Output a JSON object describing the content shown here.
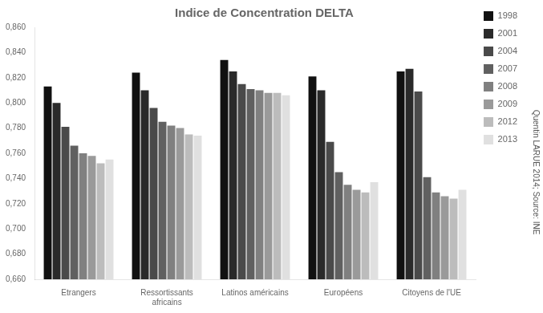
{
  "chart_data": {
    "type": "bar",
    "title": "Indice de Concentration DELTA",
    "categories": [
      "Etrangers",
      "Ressortissants\nafricains",
      "Latinos américains",
      "Européens",
      "Citoyens de l'UE"
    ],
    "series": [
      {
        "name": "1998",
        "color": "#111111",
        "values": [
          0.813,
          0.824,
          0.834,
          0.821,
          0.825
        ]
      },
      {
        "name": "2001",
        "color": "#2a2a2a",
        "values": [
          0.8,
          0.81,
          0.825,
          0.81,
          0.827
        ]
      },
      {
        "name": "2004",
        "color": "#4a4a4a",
        "values": [
          0.781,
          0.796,
          0.815,
          0.769,
          0.809
        ]
      },
      {
        "name": "2007",
        "color": "#606060",
        "values": [
          0.766,
          0.785,
          0.811,
          0.745,
          0.741
        ]
      },
      {
        "name": "2008",
        "color": "#808080",
        "values": [
          0.76,
          0.782,
          0.81,
          0.735,
          0.729
        ]
      },
      {
        "name": "2009",
        "color": "#9a9a9a",
        "values": [
          0.758,
          0.78,
          0.808,
          0.731,
          0.726
        ]
      },
      {
        "name": "2012",
        "color": "#bcbcbc",
        "values": [
          0.752,
          0.775,
          0.808,
          0.729,
          0.724
        ]
      },
      {
        "name": "2013",
        "color": "#e0e0e0",
        "values": [
          0.755,
          0.774,
          0.806,
          0.737,
          0.731
        ]
      }
    ],
    "ylim": [
      0.66,
      0.86
    ],
    "yticks": [
      {
        "value": 0.66,
        "label": "0,660"
      },
      {
        "value": 0.68,
        "label": "0,680"
      },
      {
        "value": 0.7,
        "label": "0,700"
      },
      {
        "value": 0.72,
        "label": "0,720"
      },
      {
        "value": 0.74,
        "label": "0,740"
      },
      {
        "value": 0.76,
        "label": "0,760"
      },
      {
        "value": 0.78,
        "label": "0,780"
      },
      {
        "value": 0.8,
        "label": "0,800"
      },
      {
        "value": 0.82,
        "label": "0,820"
      },
      {
        "value": 0.84,
        "label": "0,840"
      },
      {
        "value": 0.86,
        "label": "0,860"
      }
    ],
    "annotations": [
      "Quentin LARUE 2014; Source: INE"
    ],
    "legend": "right",
    "grid": false
  }
}
